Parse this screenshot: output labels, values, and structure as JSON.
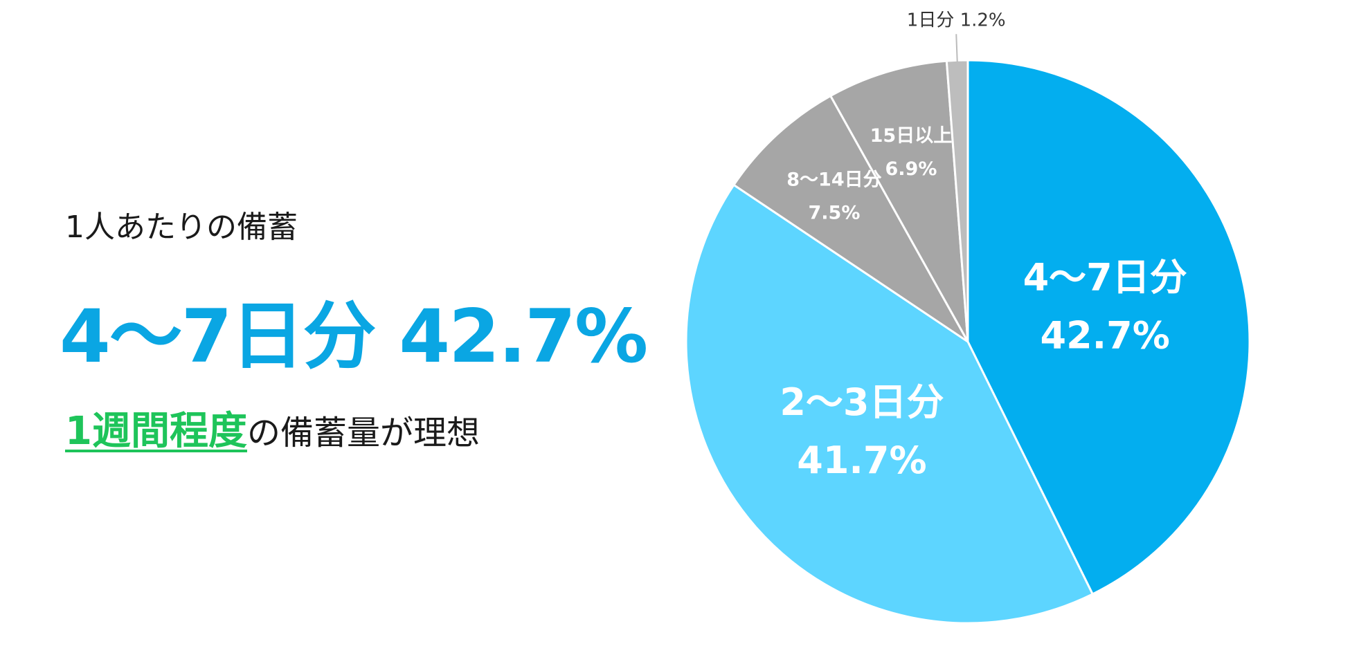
{
  "headline": {
    "subtitle": "1人あたりの備蓄",
    "main": "4〜7日分 42.7%",
    "note_highlight": "1週間程度",
    "note_rest": "の備蓄量が理想"
  },
  "colors": {
    "accent": "#0aa6e3",
    "highlight": "#1ec45a",
    "slice_main": "#03aeef",
    "slice_second": "#5dd5ff",
    "slice_other": "#a6a6a6",
    "slice_small": "#bdbdbd"
  },
  "chart_data": {
    "type": "pie",
    "start": "12 o'clock",
    "direction": "clockwise",
    "slices": [
      {
        "label": "4〜7日分",
        "value": 42.7,
        "value_label": "42.7%",
        "color": "#03aeef",
        "label_style": "large"
      },
      {
        "label": "2〜3日分",
        "value": 41.7,
        "value_label": "41.7%",
        "color": "#5dd5ff",
        "label_style": "large"
      },
      {
        "label": "8〜14日分",
        "value": 7.5,
        "value_label": "7.5%",
        "color": "#a6a6a6",
        "label_style": "small"
      },
      {
        "label": "15日以上",
        "value": 6.9,
        "value_label": "6.9%",
        "color": "#a6a6a6",
        "label_style": "small"
      },
      {
        "label": "1日分",
        "value": 1.2,
        "value_label": "1.2%",
        "color": "#bdbdbd",
        "label_style": "outside"
      }
    ]
  }
}
